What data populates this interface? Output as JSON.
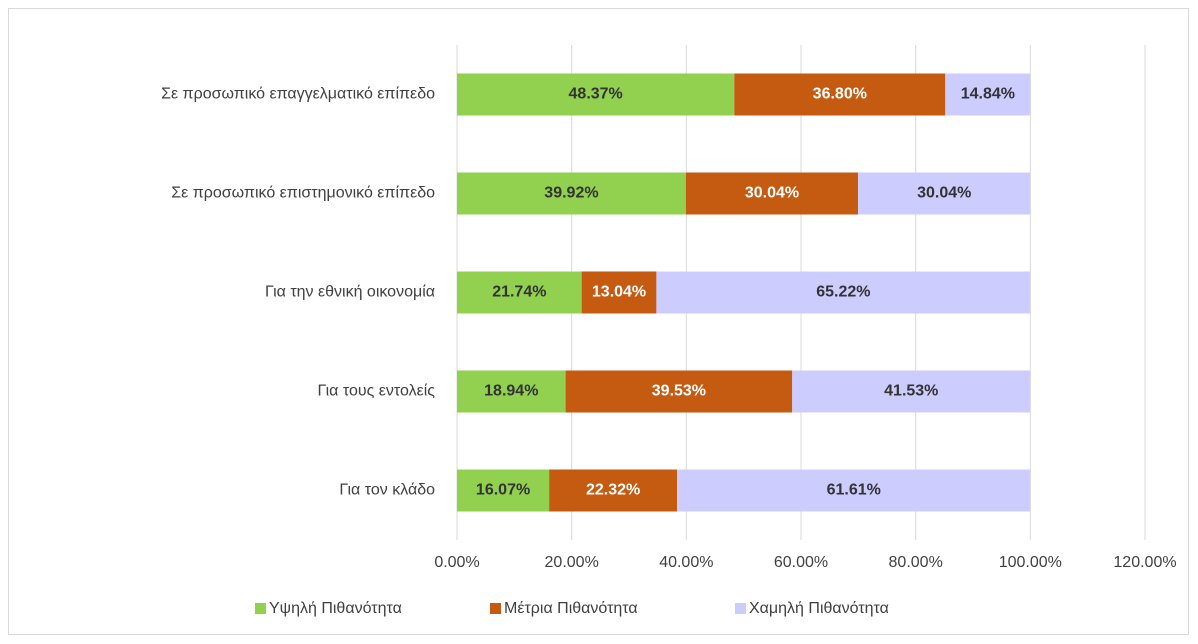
{
  "chart_data": {
    "type": "stacked-barh",
    "categories": [
      "Σε προσωπικό επαγγελματικό επίπεδο",
      "Σε προσωπικό επιστημονικό επίπεδο",
      "Για την εθνική οικονομία",
      "Για τους εντολείς",
      "Για τον κλάδο"
    ],
    "series": [
      {
        "name": "Υψηλή Πιθανότητα",
        "color": "#92d050",
        "values": [
          48.37,
          39.92,
          21.74,
          18.94,
          16.07
        ],
        "value_labels": [
          "48.37%",
          "39.92%",
          "21.74%",
          "18.94%",
          "16.07%"
        ]
      },
      {
        "name": "Μέτρια Πιθανότητα",
        "color": "#c55a11",
        "values": [
          36.8,
          30.04,
          13.04,
          39.53,
          22.32
        ],
        "value_labels": [
          "36.80%",
          "30.04%",
          "13.04%",
          "39.53%",
          "22.32%"
        ]
      },
      {
        "name": "Χαμηλή Πιθανότητα",
        "color": "#ccccff",
        "values": [
          14.84,
          30.04,
          65.22,
          41.53,
          61.61
        ],
        "value_labels": [
          "14.84%",
          "30.04%",
          "65.22%",
          "41.53%",
          "61.61%"
        ]
      }
    ],
    "xlim": [
      0,
      120
    ],
    "xticks": [
      {
        "value": 0,
        "label": "0.00%"
      },
      {
        "value": 20,
        "label": "20.00%"
      },
      {
        "value": 40,
        "label": "40.00%"
      },
      {
        "value": 60,
        "label": "60.00%"
      },
      {
        "value": 80,
        "label": "80.00%"
      },
      {
        "value": 100,
        "label": "100.00%"
      },
      {
        "value": 120,
        "label": "120.00%"
      }
    ],
    "grid": true,
    "legend": "bottom"
  }
}
